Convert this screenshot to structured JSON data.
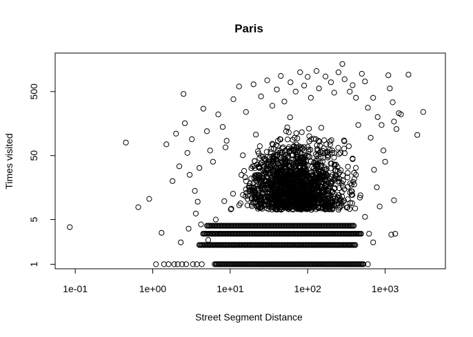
{
  "chart_data": {
    "type": "scatter",
    "title": "Paris",
    "xlabel": "Street Segment Distance",
    "ylabel": "Times visited",
    "x_scale": "log",
    "y_scale": "log",
    "xlim": [
      0.055,
      6000
    ],
    "ylim": [
      0.85,
      2000
    ],
    "x_ticks": [
      {
        "value": 0.1,
        "label": "1e-01"
      },
      {
        "value": 1,
        "label": "1e+00"
      },
      {
        "value": 10,
        "label": "1e+01"
      },
      {
        "value": 100,
        "label": "1e+02"
      },
      {
        "value": 1000,
        "label": "1e+03"
      }
    ],
    "y_ticks": [
      {
        "value": 1,
        "label": "1"
      },
      {
        "value": 5,
        "label": "5"
      },
      {
        "value": 50,
        "label": "50"
      },
      {
        "value": 500,
        "label": "500"
      }
    ],
    "grid": false,
    "legend": "none",
    "marker": "open-circle",
    "points": [
      [
        0.085,
        3.8
      ],
      [
        0.45,
        80
      ],
      [
        0.65,
        7.8
      ],
      [
        0.9,
        10.5
      ],
      [
        1.3,
        3.1
      ],
      [
        1.5,
        75
      ],
      [
        1.8,
        20
      ],
      [
        2,
        110
      ],
      [
        2.2,
        34
      ],
      [
        2.3,
        2.2
      ],
      [
        2.5,
        460
      ],
      [
        2.6,
        160
      ],
      [
        2.8,
        55
      ],
      [
        3,
        25
      ],
      [
        3.2,
        90
      ],
      [
        3.5,
        14
      ],
      [
        3.8,
        9.5
      ],
      [
        4,
        32
      ],
      [
        4.5,
        270
      ],
      [
        5,
        120
      ],
      [
        5.5,
        60
      ],
      [
        6,
        40
      ],
      [
        7,
        220
      ],
      [
        8,
        140
      ],
      [
        9,
        85
      ],
      [
        11,
        380
      ],
      [
        13,
        600
      ],
      [
        16,
        240
      ],
      [
        20,
        650
      ],
      [
        25,
        420
      ],
      [
        30,
        750
      ],
      [
        35,
        300
      ],
      [
        40,
        540
      ],
      [
        45,
        880
      ],
      [
        50,
        350
      ],
      [
        60,
        700
      ],
      [
        70,
        500
      ],
      [
        80,
        1000
      ],
      [
        90,
        620
      ],
      [
        100,
        850
      ],
      [
        110,
        400
      ],
      [
        130,
        1050
      ],
      [
        140,
        560
      ],
      [
        170,
        860
      ],
      [
        200,
        700
      ],
      [
        220,
        480
      ],
      [
        250,
        1000
      ],
      [
        280,
        1350
      ],
      [
        300,
        780
      ],
      [
        350,
        500
      ],
      [
        380,
        630
      ],
      [
        420,
        400
      ],
      [
        500,
        950
      ],
      [
        550,
        720
      ],
      [
        600,
        280
      ],
      [
        700,
        400
      ],
      [
        800,
        200
      ],
      [
        900,
        150
      ],
      [
        1100,
        900
      ],
      [
        1150,
        560
      ],
      [
        1250,
        340
      ],
      [
        1300,
        170
      ],
      [
        1400,
        130
      ],
      [
        1500,
        230
      ],
      [
        1600,
        220
      ],
      [
        2000,
        920
      ],
      [
        2600,
        105
      ],
      [
        3100,
        240
      ],
      [
        1350,
        3
      ],
      [
        1300,
        10
      ],
      [
        700,
        2.2
      ],
      [
        620,
        3
      ],
      [
        550,
        5.5
      ],
      [
        480,
        12
      ],
      [
        420,
        25
      ],
      [
        380,
        45
      ],
      [
        340,
        70
      ],
      [
        1200,
        2.9
      ],
      [
        1000,
        40
      ],
      [
        950,
        60
      ],
      [
        850,
        8
      ],
      [
        780,
        16
      ],
      [
        720,
        30
      ],
      [
        650,
        95
      ],
      [
        450,
        150
      ],
      [
        6.5,
        5
      ],
      [
        7.5,
        3
      ],
      [
        5.2,
        2.4
      ],
      [
        4.2,
        4.2
      ],
      [
        3.6,
        6.2
      ],
      [
        2.9,
        3.6
      ],
      [
        1.1,
        1
      ],
      [
        1.4,
        1
      ],
      [
        1.6,
        1
      ],
      [
        1.9,
        1
      ],
      [
        2.1,
        1
      ],
      [
        2.4,
        1
      ],
      [
        2.7,
        1
      ],
      [
        3.3,
        1
      ],
      [
        3.7,
        1
      ],
      [
        4.3,
        1
      ],
      [
        600,
        1
      ]
    ]
  }
}
